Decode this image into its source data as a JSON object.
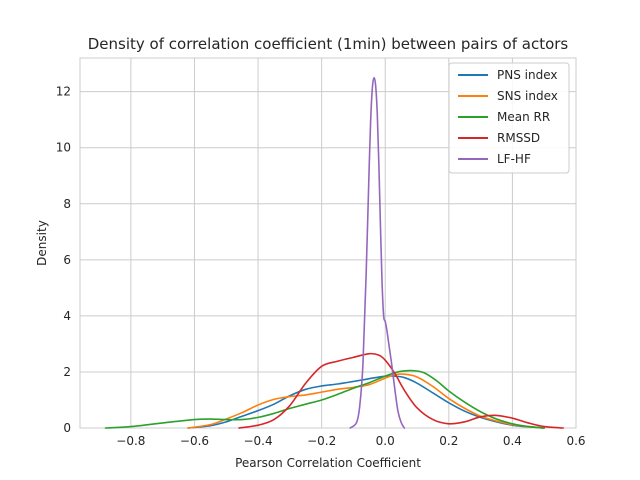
{
  "chart_data": {
    "type": "line",
    "title": "Density of correlation coefficient (1min) between pairs of actors",
    "xlabel": "Pearson Correlation Coefficient",
    "ylabel": "Density",
    "xlim": [
      -0.96,
      0.6
    ],
    "ylim": [
      0,
      13.2
    ],
    "xticks": [
      -0.8,
      -0.6,
      -0.4,
      -0.2,
      0.0,
      0.2,
      0.4,
      0.6
    ],
    "xtick_labels": [
      "−0.8",
      "−0.6",
      "−0.4",
      "−0.2",
      "0.0",
      "0.2",
      "0.4",
      "0.6"
    ],
    "yticks": [
      0,
      2,
      4,
      6,
      8,
      10,
      12
    ],
    "ytick_labels": [
      "0",
      "2",
      "4",
      "6",
      "8",
      "10",
      "12"
    ],
    "grid": true,
    "legend_position": "top-right",
    "series": [
      {
        "name": "PNS index",
        "color": "#1f77b4",
        "x": [
          -0.62,
          -0.55,
          -0.5,
          -0.45,
          -0.4,
          -0.35,
          -0.3,
          -0.25,
          -0.2,
          -0.15,
          -0.1,
          -0.05,
          0.0,
          0.03,
          0.06,
          0.1,
          0.15,
          0.2,
          0.25,
          0.3,
          0.35,
          0.4,
          0.45,
          0.5
        ],
        "y": [
          0.0,
          0.08,
          0.22,
          0.42,
          0.62,
          0.85,
          1.15,
          1.38,
          1.5,
          1.57,
          1.66,
          1.76,
          1.85,
          1.85,
          1.8,
          1.6,
          1.25,
          0.9,
          0.6,
          0.38,
          0.22,
          0.1,
          0.04,
          0.0
        ]
      },
      {
        "name": "SNS index",
        "color": "#ff7f0e",
        "x": [
          -0.62,
          -0.55,
          -0.5,
          -0.45,
          -0.4,
          -0.35,
          -0.3,
          -0.25,
          -0.2,
          -0.15,
          -0.1,
          -0.05,
          0.0,
          0.03,
          0.06,
          0.1,
          0.15,
          0.2,
          0.25,
          0.3,
          0.35,
          0.4,
          0.45,
          0.5
        ],
        "y": [
          0.0,
          0.12,
          0.32,
          0.55,
          0.82,
          1.02,
          1.12,
          1.18,
          1.28,
          1.38,
          1.45,
          1.55,
          1.78,
          1.9,
          1.92,
          1.82,
          1.48,
          1.05,
          0.7,
          0.42,
          0.25,
          0.12,
          0.05,
          0.0
        ]
      },
      {
        "name": "Mean RR",
        "color": "#2ca02c",
        "x": [
          -0.88,
          -0.8,
          -0.7,
          -0.6,
          -0.55,
          -0.5,
          -0.45,
          -0.4,
          -0.35,
          -0.3,
          -0.25,
          -0.2,
          -0.15,
          -0.1,
          -0.05,
          0.0,
          0.04,
          0.08,
          0.12,
          0.16,
          0.2,
          0.25,
          0.3,
          0.35,
          0.4,
          0.45,
          0.5
        ],
        "y": [
          0.0,
          0.05,
          0.18,
          0.3,
          0.32,
          0.3,
          0.3,
          0.38,
          0.52,
          0.7,
          0.85,
          1.0,
          1.2,
          1.42,
          1.62,
          1.85,
          2.0,
          2.05,
          1.98,
          1.7,
          1.32,
          0.92,
          0.58,
          0.32,
          0.15,
          0.05,
          0.0
        ]
      },
      {
        "name": "RMSSD",
        "color": "#d62728",
        "x": [
          -0.46,
          -0.4,
          -0.35,
          -0.3,
          -0.25,
          -0.2,
          -0.15,
          -0.1,
          -0.05,
          -0.02,
          0.0,
          0.03,
          0.06,
          0.1,
          0.15,
          0.2,
          0.25,
          0.3,
          0.35,
          0.4,
          0.45,
          0.5,
          0.56
        ],
        "y": [
          0.0,
          0.1,
          0.3,
          0.8,
          1.6,
          2.2,
          2.38,
          2.52,
          2.65,
          2.6,
          2.42,
          1.95,
          1.35,
          0.72,
          0.3,
          0.15,
          0.22,
          0.4,
          0.45,
          0.35,
          0.18,
          0.05,
          0.0
        ]
      },
      {
        "name": "LF-HF",
        "color": "#9467bd",
        "x": [
          -0.11,
          -0.09,
          -0.08,
          -0.07,
          -0.06,
          -0.05,
          -0.045,
          -0.04,
          -0.035,
          -0.03,
          -0.025,
          -0.02,
          -0.015,
          -0.01,
          -0.005,
          0.0,
          0.005,
          0.01,
          0.02,
          0.03,
          0.04,
          0.05,
          0.06
        ],
        "y": [
          0.0,
          0.2,
          0.8,
          2.3,
          5.5,
          9.5,
          11.2,
          12.2,
          12.5,
          12.2,
          11.2,
          9.4,
          7.2,
          5.2,
          4.0,
          3.8,
          3.5,
          3.1,
          2.3,
          1.4,
          0.6,
          0.2,
          0.0
        ]
      }
    ]
  }
}
